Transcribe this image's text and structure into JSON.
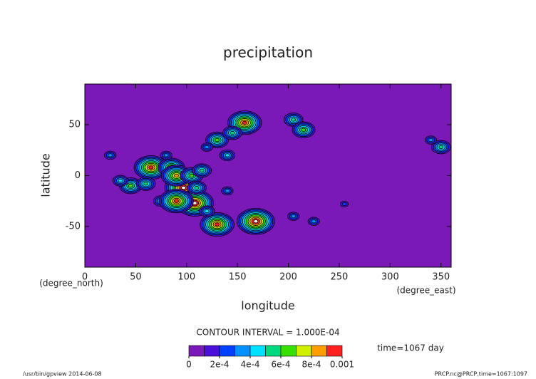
{
  "chart_data": {
    "type": "contour",
    "title": "precipitation",
    "x_label": "longitude",
    "y_label": "latitude",
    "x_unit": "(degree_east)",
    "y_unit": "(degree_north)",
    "xlim": [
      0,
      360
    ],
    "ylim": [
      -90,
      90
    ],
    "xticks": [
      0,
      50,
      100,
      150,
      200,
      250,
      300,
      350
    ],
    "yticks": [
      -50,
      0,
      50
    ],
    "contour_interval": "CONTOUR INTERVAL = 1.000E-04",
    "time_label": "time=1067 day",
    "footer_left": "/usr/bin/gpview  2014-06-08",
    "footer_right": "PRCP.nc@PRCP,time=1067:1097",
    "levels": [
      0,
      0.0001,
      0.0002,
      0.0003,
      0.0004,
      0.0005,
      0.0006,
      0.0007,
      0.0008,
      0.0009,
      0.001
    ],
    "colors": [
      "#7a18b8",
      "#4a10d8",
      "#0040ff",
      "#0090ff",
      "#00e0ff",
      "#00d880",
      "#38e000",
      "#d0f000",
      "#ff9c00",
      "#ff2020"
    ],
    "above_color": "#ffffff",
    "colorbar_ticks": [
      0,
      {
        "value": 0.0002,
        "label": "2e-4"
      },
      {
        "value": 0.0004,
        "label": "4e-4"
      },
      {
        "value": 0.0006,
        "label": "6e-4"
      },
      {
        "value": 0.0008,
        "label": "8e-4"
      },
      0.001
    ],
    "features": {
      "lon": [
        157,
        205,
        215,
        130,
        145,
        120,
        140,
        350,
        340,
        65,
        85,
        45,
        60,
        97,
        108,
        168,
        90,
        105,
        130,
        115,
        110,
        35,
        140,
        205,
        225,
        255,
        120,
        25,
        80,
        75,
        90
      ],
      "lat": [
        52,
        55,
        45,
        35,
        42,
        28,
        20,
        28,
        35,
        8,
        8,
        -10,
        -8,
        -12,
        -27,
        -45,
        0,
        0,
        -48,
        5,
        -12,
        -5,
        -15,
        -40,
        -45,
        -28,
        -35,
        20,
        20,
        -25,
        -25
      ],
      "values": [
        0.0009,
        0.0005,
        0.0006,
        0.0006,
        0.0005,
        0.0003,
        0.0004,
        0.0005,
        0.0003,
        0.0009,
        0.0007,
        0.0006,
        0.0005,
        0.0012,
        0.0012,
        0.0012,
        0.0008,
        0.0006,
        0.0009,
        0.0005,
        0.0005,
        0.0004,
        0.0003,
        0.0003,
        0.0003,
        0.0002,
        0.0004,
        0.0003,
        0.0003,
        0.0004,
        0.0009
      ]
    }
  }
}
